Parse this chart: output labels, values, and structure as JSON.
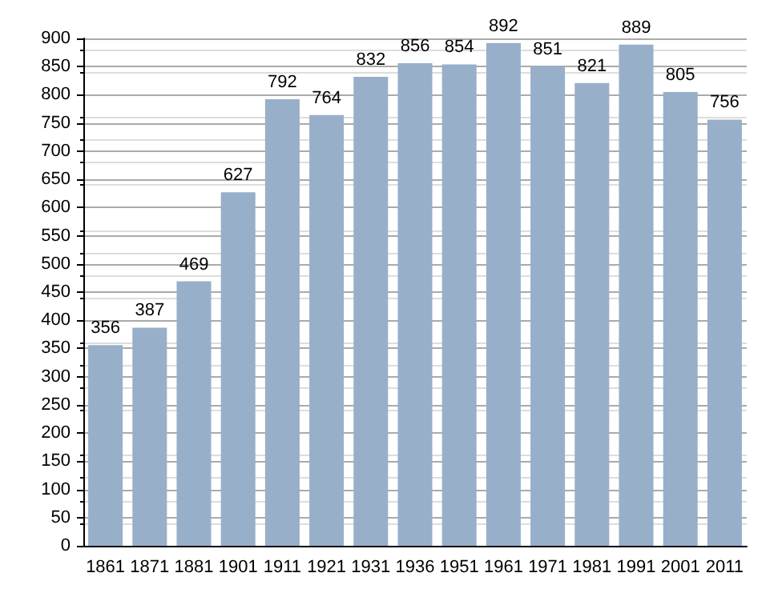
{
  "chart_data": {
    "type": "bar",
    "categories": [
      "1861",
      "1871",
      "1881",
      "1901",
      "1911",
      "1921",
      "1931",
      "1936",
      "1951",
      "1961",
      "1971",
      "1981",
      "1991",
      "2001",
      "2011"
    ],
    "values": [
      356,
      387,
      469,
      627,
      792,
      764,
      832,
      856,
      854,
      892,
      851,
      821,
      889,
      805,
      756
    ],
    "color": "#98afc9",
    "ylim": [
      0,
      900
    ],
    "yticks": [
      0,
      50,
      100,
      150,
      200,
      250,
      300,
      350,
      400,
      450,
      500,
      550,
      600,
      650,
      700,
      750,
      800,
      850,
      900
    ],
    "grid": "y",
    "data_labels": true
  }
}
